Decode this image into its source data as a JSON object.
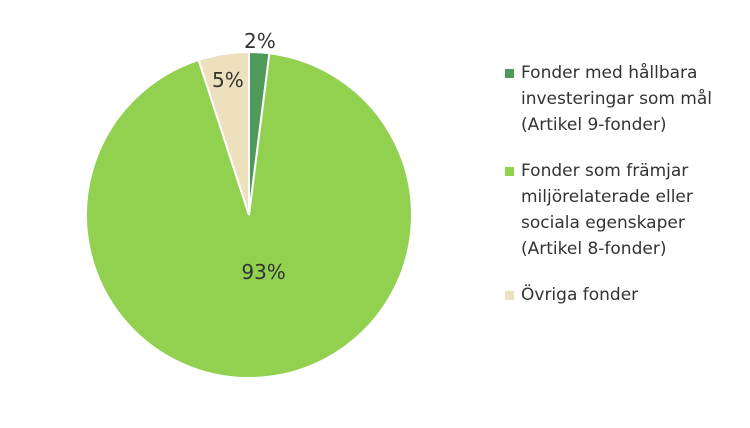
{
  "chart_data": {
    "type": "pie",
    "categories": [
      "Fonder med hållbara investeringar som mål (Artikel 9-fonder)",
      "Fonder som främjar miljörelaterade eller sociala egenskaper (Artikel 8-fonder)",
      "Övriga fonder"
    ],
    "values": [
      2,
      93,
      5
    ],
    "value_labels": [
      "2%",
      "93%",
      "5%"
    ],
    "colors": [
      "#4f9a5a",
      "#92d050",
      "#ede0bd"
    ],
    "legend": "right"
  }
}
